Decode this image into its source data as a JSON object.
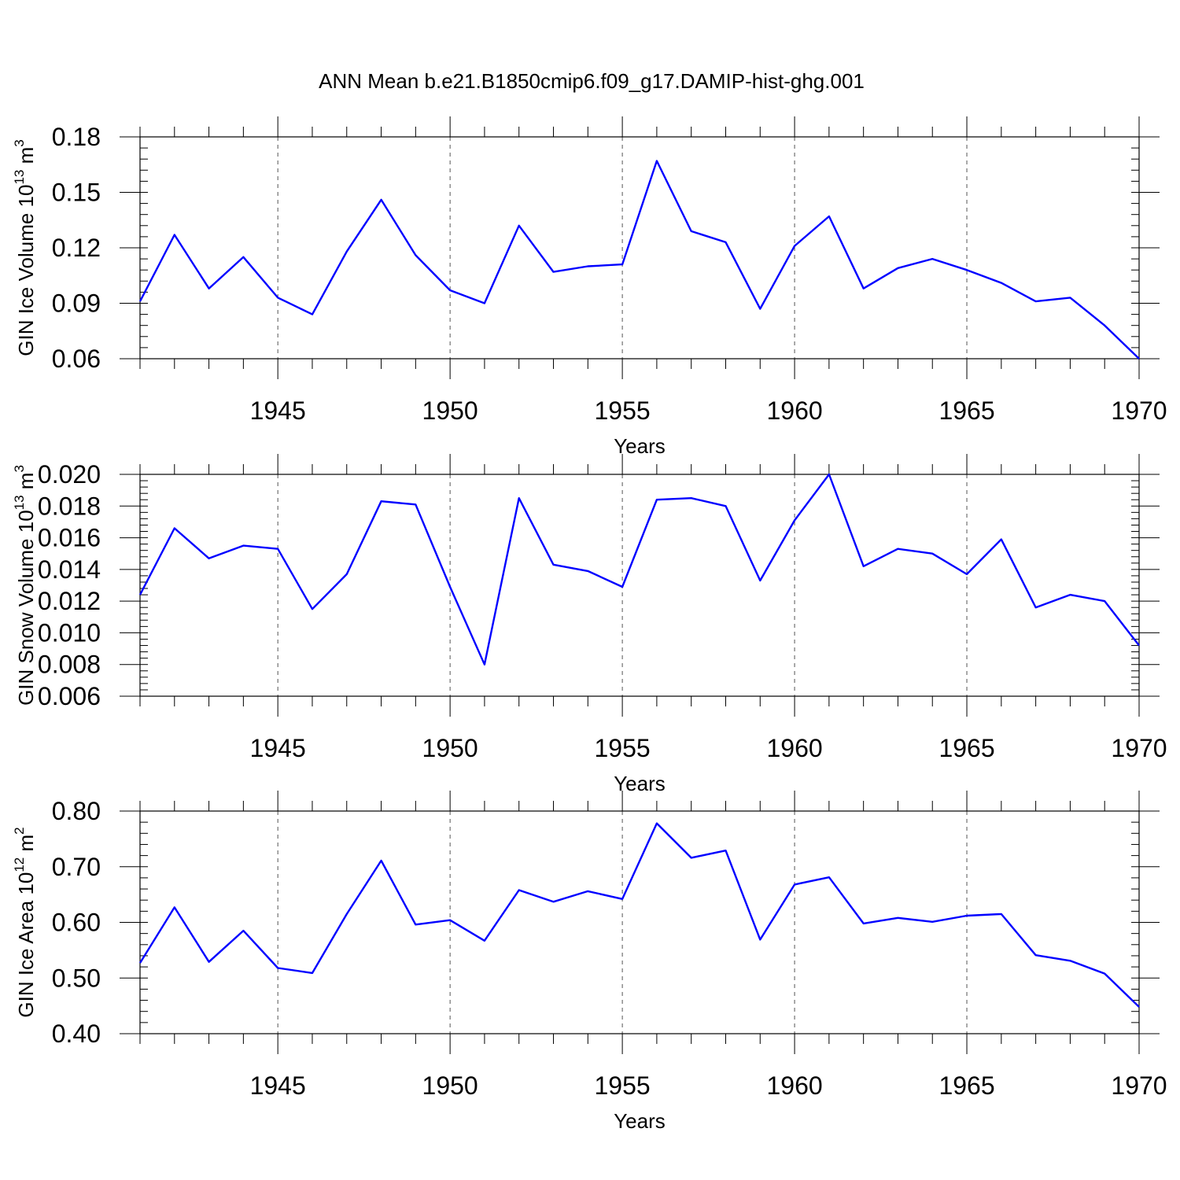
{
  "title": "ANN Mean b.e21.B1850cmip6.f09_g17.DAMIP-hist-ghg.001",
  "line_color": "#0000ff",
  "chart_data": [
    {
      "type": "line",
      "xlabel": "Years",
      "ylabel": {
        "main": "GIN Ice Volume 10",
        "sup": "13",
        "unit": " m",
        "unit_sup": "3"
      },
      "xlim": [
        1941,
        1970
      ],
      "ylim": [
        0.06,
        0.18
      ],
      "yticks": [
        0.06,
        0.09,
        0.12,
        0.15,
        0.18
      ],
      "ytick_labels": [
        "0.06",
        "0.09",
        "0.12",
        "0.15",
        "0.18"
      ],
      "xticks": [
        1945,
        1950,
        1955,
        1960,
        1965,
        1970
      ],
      "xtick_labels": [
        "1945",
        "1950",
        "1955",
        "1960",
        "1965",
        "1970"
      ],
      "x": [
        1941,
        1942,
        1943,
        1944,
        1945,
        1946,
        1947,
        1948,
        1949,
        1950,
        1951,
        1952,
        1953,
        1954,
        1955,
        1956,
        1957,
        1958,
        1959,
        1960,
        1961,
        1962,
        1963,
        1964,
        1965,
        1966,
        1967,
        1968,
        1969,
        1970
      ],
      "values": [
        0.091,
        0.127,
        0.098,
        0.115,
        0.093,
        0.084,
        0.118,
        0.146,
        0.116,
        0.097,
        0.09,
        0.132,
        0.107,
        0.11,
        0.111,
        0.167,
        0.129,
        0.123,
        0.087,
        0.121,
        0.137,
        0.098,
        0.109,
        0.114,
        0.108,
        0.101,
        0.091,
        0.093,
        0.078,
        0.06
      ]
    },
    {
      "type": "line",
      "xlabel": "Years",
      "ylabel": {
        "main": "GIN Snow Volume 10",
        "sup": "13",
        "unit": " m",
        "unit_sup": "3"
      },
      "xlim": [
        1941,
        1970
      ],
      "ylim": [
        0.006,
        0.02
      ],
      "yticks": [
        0.006,
        0.008,
        0.01,
        0.012,
        0.014,
        0.016,
        0.018,
        0.02
      ],
      "ytick_labels": [
        "0.006",
        "0.008",
        "0.010",
        "0.012",
        "0.014",
        "0.016",
        "0.018",
        "0.020"
      ],
      "xticks": [
        1945,
        1950,
        1955,
        1960,
        1965,
        1970
      ],
      "xtick_labels": [
        "1945",
        "1950",
        "1955",
        "1960",
        "1965",
        "1970"
      ],
      "x": [
        1941,
        1942,
        1943,
        1944,
        1945,
        1946,
        1947,
        1948,
        1949,
        1950,
        1951,
        1952,
        1953,
        1954,
        1955,
        1956,
        1957,
        1958,
        1959,
        1960,
        1961,
        1962,
        1963,
        1964,
        1965,
        1966,
        1967,
        1968,
        1969,
        1970
      ],
      "values": [
        0.0124,
        0.0166,
        0.0147,
        0.0155,
        0.0153,
        0.0115,
        0.0137,
        0.0183,
        0.0181,
        0.0129,
        0.008,
        0.0185,
        0.0143,
        0.0139,
        0.0129,
        0.0184,
        0.0185,
        0.018,
        0.0133,
        0.0171,
        0.02,
        0.0142,
        0.0153,
        0.015,
        0.0137,
        0.0159,
        0.0116,
        0.0124,
        0.012,
        0.0092
      ]
    },
    {
      "type": "line",
      "xlabel": "Years",
      "ylabel": {
        "main": "GIN Ice Area 10",
        "sup": "12",
        "unit": " m",
        "unit_sup": "2"
      },
      "xlim": [
        1941,
        1970
      ],
      "ylim": [
        0.4,
        0.8
      ],
      "yticks": [
        0.4,
        0.5,
        0.6,
        0.7,
        0.8
      ],
      "ytick_labels": [
        "0.40",
        "0.50",
        "0.60",
        "0.70",
        "0.80"
      ],
      "xticks": [
        1945,
        1950,
        1955,
        1960,
        1965,
        1970
      ],
      "xtick_labels": [
        "1945",
        "1950",
        "1955",
        "1960",
        "1965",
        "1970"
      ],
      "x": [
        1941,
        1942,
        1943,
        1944,
        1945,
        1946,
        1947,
        1948,
        1949,
        1950,
        1951,
        1952,
        1953,
        1954,
        1955,
        1956,
        1957,
        1958,
        1959,
        1960,
        1961,
        1962,
        1963,
        1964,
        1965,
        1966,
        1967,
        1968,
        1969,
        1970
      ],
      "values": [
        0.527,
        0.627,
        0.529,
        0.585,
        0.518,
        0.509,
        0.615,
        0.711,
        0.596,
        0.604,
        0.567,
        0.658,
        0.637,
        0.656,
        0.642,
        0.778,
        0.716,
        0.729,
        0.569,
        0.668,
        0.681,
        0.598,
        0.608,
        0.601,
        0.612,
        0.615,
        0.541,
        0.531,
        0.508,
        0.448
      ]
    }
  ]
}
